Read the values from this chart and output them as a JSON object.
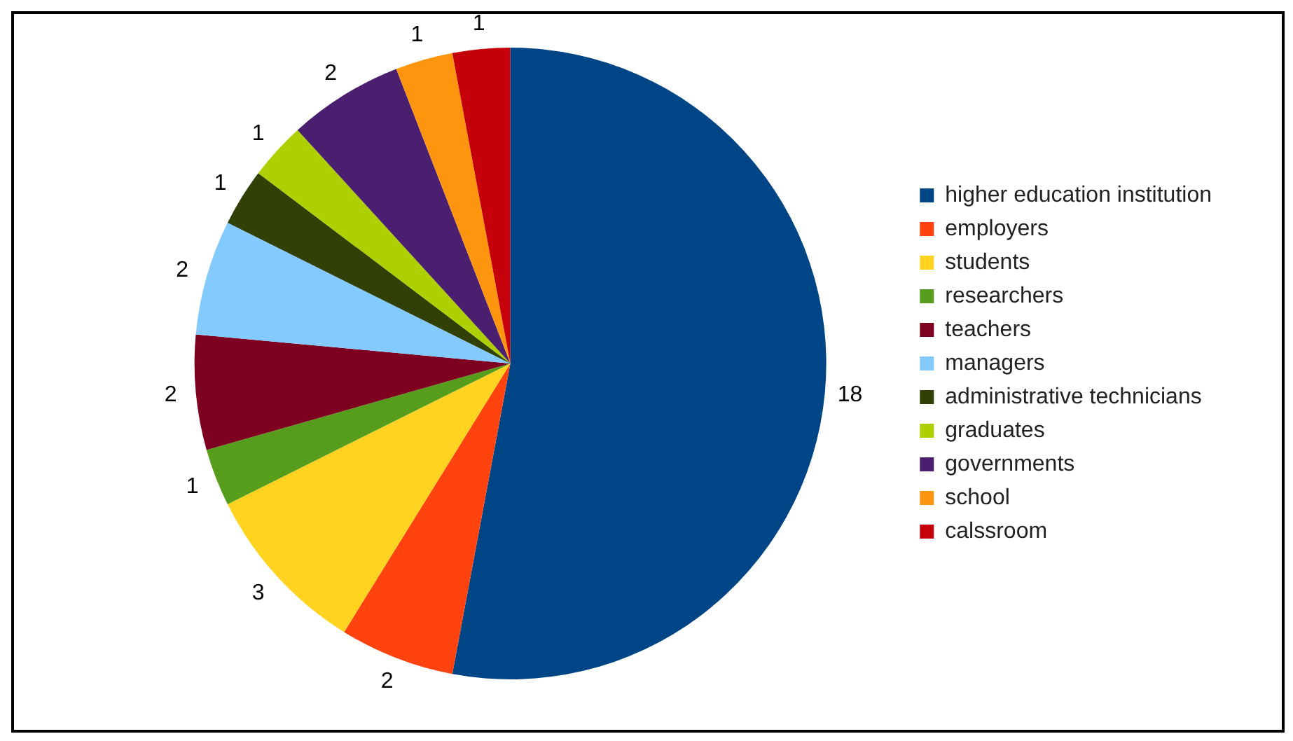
{
  "chart_data": {
    "type": "pie",
    "categories": [
      "higher education institution",
      "employers",
      "students",
      "researchers",
      "teachers",
      "managers",
      "administrative technicians",
      "graduates",
      "governments",
      "school",
      "calssroom"
    ],
    "values": [
      18,
      2,
      3,
      1,
      2,
      2,
      1,
      1,
      2,
      1,
      1
    ],
    "colors": [
      "#004586",
      "#ff420e",
      "#ffd320",
      "#579d1c",
      "#7e0021",
      "#83caff",
      "#314004",
      "#aecf00",
      "#4b1f6f",
      "#ff950e",
      "#c5000b"
    ],
    "data_labels": true,
    "legend": "right"
  }
}
